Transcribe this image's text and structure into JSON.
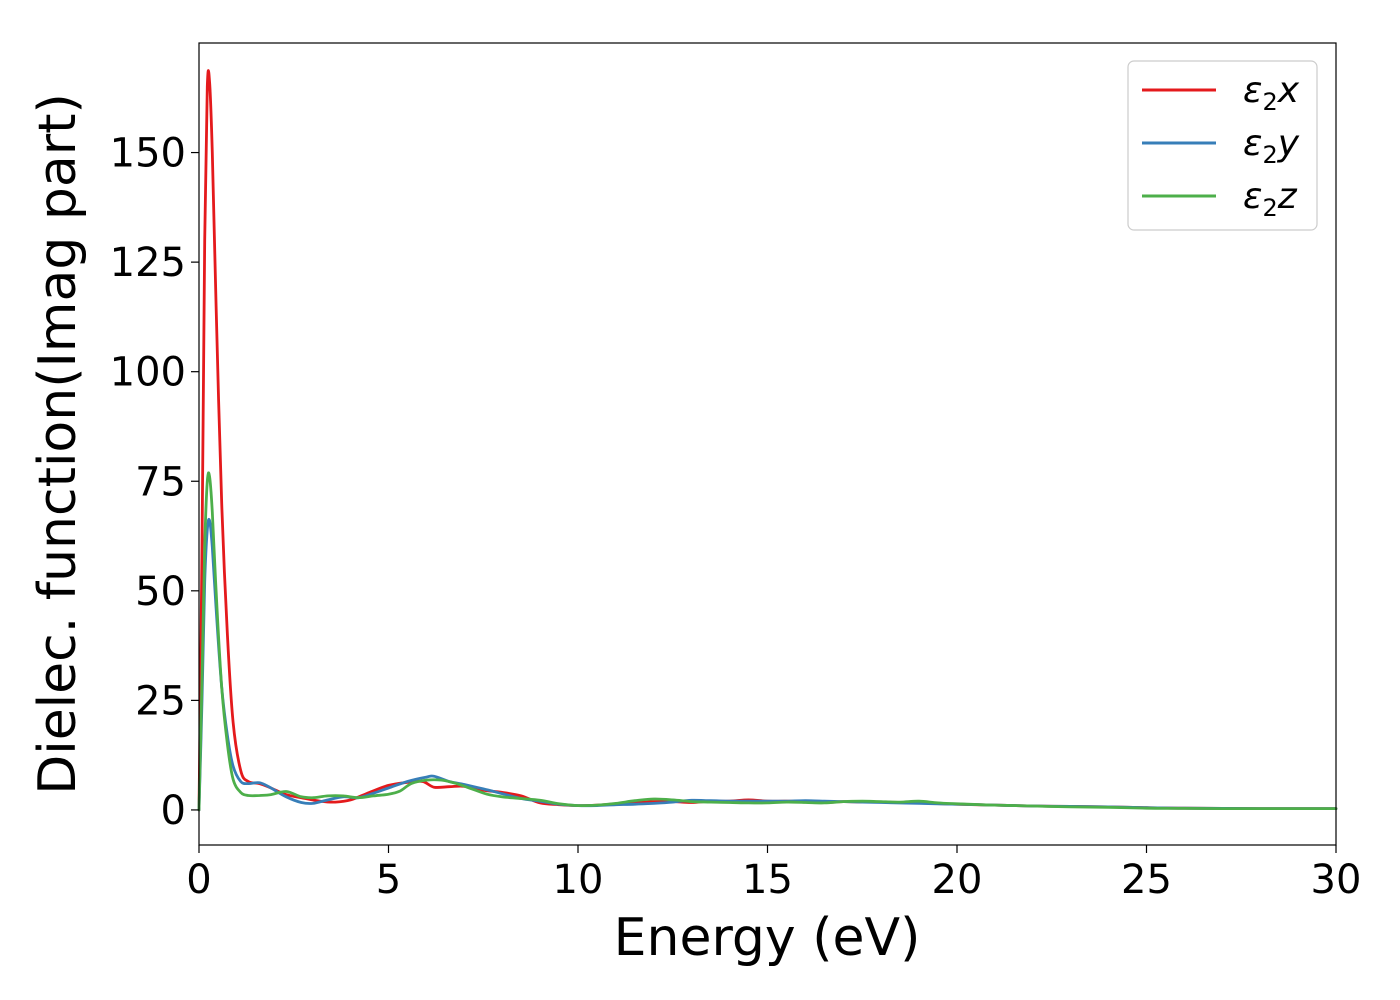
{
  "chart_data": {
    "type": "line",
    "title": "",
    "xlabel": "Energy (eV)",
    "ylabel": "Dielec. function(Imag part)",
    "xlim": [
      0,
      30
    ],
    "ylim": [
      -8,
      175
    ],
    "xticks": [
      "0",
      "5",
      "10",
      "15",
      "20",
      "25",
      "30"
    ],
    "yticks": [
      "0",
      "25",
      "50",
      "75",
      "100",
      "125",
      "150"
    ],
    "xtick_values": [
      0,
      5,
      10,
      15,
      20,
      25,
      30
    ],
    "ytick_values": [
      0,
      25,
      50,
      75,
      100,
      125,
      150
    ],
    "grid": false,
    "legend": {
      "position": "top-right"
    },
    "series": [
      {
        "name_main": "ε",
        "name_sub": "2",
        "name_tail": "x",
        "color": "#e41a1c",
        "points": [
          [
            0,
            0
          ],
          [
            0.08,
            60
          ],
          [
            0.15,
            130
          ],
          [
            0.22,
            165
          ],
          [
            0.28,
            166
          ],
          [
            0.35,
            150
          ],
          [
            0.45,
            115
          ],
          [
            0.6,
            70
          ],
          [
            0.75,
            40
          ],
          [
            0.9,
            20
          ],
          [
            1.1,
            9
          ],
          [
            1.3,
            6.5
          ],
          [
            1.6,
            6
          ],
          [
            1.9,
            5
          ],
          [
            2.3,
            3.5
          ],
          [
            2.7,
            2.8
          ],
          [
            3.2,
            2
          ],
          [
            3.6,
            1.8
          ],
          [
            4.0,
            2.3
          ],
          [
            4.5,
            4
          ],
          [
            5.0,
            5.6
          ],
          [
            5.5,
            6.3
          ],
          [
            5.9,
            6.5
          ],
          [
            6.2,
            5.2
          ],
          [
            6.6,
            5.3
          ],
          [
            7.0,
            5.4
          ],
          [
            7.5,
            4.5
          ],
          [
            8.0,
            4
          ],
          [
            8.5,
            3.2
          ],
          [
            9.0,
            1.6
          ],
          [
            9.5,
            1.2
          ],
          [
            10,
            1
          ],
          [
            10.5,
            1.1
          ],
          [
            11,
            1.4
          ],
          [
            11.5,
            1.6
          ],
          [
            12,
            1.9
          ],
          [
            12.5,
            1.9
          ],
          [
            13,
            1.7
          ],
          [
            13.5,
            2
          ],
          [
            14,
            2
          ],
          [
            14.5,
            2.3
          ],
          [
            15,
            2
          ],
          [
            15.5,
            2
          ],
          [
            16,
            1.9
          ],
          [
            16.5,
            1.7
          ],
          [
            17,
            1.9
          ],
          [
            17.5,
            1.8
          ],
          [
            18,
            1.8
          ],
          [
            19,
            1.6
          ],
          [
            20,
            1.3
          ],
          [
            21,
            1.1
          ],
          [
            22,
            0.9
          ],
          [
            23,
            0.8
          ],
          [
            24,
            0.7
          ],
          [
            25,
            0.5
          ],
          [
            26,
            0.4
          ],
          [
            27,
            0.35
          ],
          [
            28,
            0.3
          ],
          [
            29,
            0.3
          ],
          [
            30,
            0.3
          ]
        ]
      },
      {
        "name_main": "ε",
        "name_sub": "2",
        "name_tail": "y",
        "color": "#377eb8",
        "points": [
          [
            0,
            0
          ],
          [
            0.08,
            25
          ],
          [
            0.15,
            52
          ],
          [
            0.22,
            64
          ],
          [
            0.28,
            66
          ],
          [
            0.35,
            60
          ],
          [
            0.45,
            46
          ],
          [
            0.6,
            28
          ],
          [
            0.75,
            17
          ],
          [
            0.9,
            10
          ],
          [
            1.1,
            6.5
          ],
          [
            1.3,
            6
          ],
          [
            1.6,
            6.2
          ],
          [
            1.9,
            5
          ],
          [
            2.3,
            3
          ],
          [
            2.7,
            1.7
          ],
          [
            3.0,
            1.5
          ],
          [
            3.4,
            2.3
          ],
          [
            3.8,
            3
          ],
          [
            4.2,
            2.8
          ],
          [
            4.6,
            3.8
          ],
          [
            5.0,
            5
          ],
          [
            5.5,
            6.5
          ],
          [
            6.0,
            7.5
          ],
          [
            6.2,
            7.7
          ],
          [
            6.6,
            6.5
          ],
          [
            7.0,
            5.8
          ],
          [
            7.5,
            4.8
          ],
          [
            8.0,
            3.7
          ],
          [
            8.5,
            2.6
          ],
          [
            9.0,
            2
          ],
          [
            9.5,
            1.3
          ],
          [
            10,
            1
          ],
          [
            10.5,
            1
          ],
          [
            11,
            1.2
          ],
          [
            11.5,
            1.3
          ],
          [
            12,
            1.5
          ],
          [
            12.5,
            1.8
          ],
          [
            13,
            2.2
          ],
          [
            13.5,
            2.1
          ],
          [
            14,
            2
          ],
          [
            14.5,
            2
          ],
          [
            15,
            2
          ],
          [
            15.5,
            2
          ],
          [
            16,
            2.1
          ],
          [
            16.5,
            2
          ],
          [
            17,
            1.9
          ],
          [
            17.5,
            1.8
          ],
          [
            18,
            1.7
          ],
          [
            19,
            1.5
          ],
          [
            20,
            1.3
          ],
          [
            21,
            1.1
          ],
          [
            22,
            0.9
          ],
          [
            23,
            0.8
          ],
          [
            24,
            0.7
          ],
          [
            25,
            0.5
          ],
          [
            26,
            0.4
          ],
          [
            27,
            0.35
          ],
          [
            28,
            0.3
          ],
          [
            29,
            0.3
          ],
          [
            30,
            0.3
          ]
        ]
      },
      {
        "name_main": "ε",
        "name_sub": "2",
        "name_tail": "z",
        "color": "#4daf4a",
        "points": [
          [
            0,
            0
          ],
          [
            0.08,
            30
          ],
          [
            0.15,
            60
          ],
          [
            0.22,
            75
          ],
          [
            0.28,
            76
          ],
          [
            0.35,
            68
          ],
          [
            0.45,
            50
          ],
          [
            0.6,
            28
          ],
          [
            0.75,
            15
          ],
          [
            0.9,
            7
          ],
          [
            1.1,
            4
          ],
          [
            1.3,
            3.3
          ],
          [
            1.6,
            3.3
          ],
          [
            1.9,
            3.5
          ],
          [
            2.3,
            4.2
          ],
          [
            2.7,
            3
          ],
          [
            3.0,
            2.8
          ],
          [
            3.4,
            3.2
          ],
          [
            3.8,
            3.2
          ],
          [
            4.2,
            2.8
          ],
          [
            4.6,
            3.2
          ],
          [
            5.0,
            3.6
          ],
          [
            5.3,
            4.3
          ],
          [
            5.6,
            6
          ],
          [
            6.0,
            6.8
          ],
          [
            6.4,
            6.8
          ],
          [
            6.8,
            6
          ],
          [
            7.2,
            4.8
          ],
          [
            7.6,
            3.6
          ],
          [
            8.0,
            3
          ],
          [
            8.5,
            2.6
          ],
          [
            9.0,
            2.2
          ],
          [
            9.5,
            1.4
          ],
          [
            10,
            1
          ],
          [
            10.5,
            1.1
          ],
          [
            11,
            1.5
          ],
          [
            11.5,
            2.1
          ],
          [
            12,
            2.5
          ],
          [
            12.5,
            2.3
          ],
          [
            13,
            1.9
          ],
          [
            13.5,
            1.8
          ],
          [
            14,
            1.7
          ],
          [
            14.5,
            1.6
          ],
          [
            15,
            1.6
          ],
          [
            15.5,
            1.8
          ],
          [
            16,
            1.7
          ],
          [
            16.5,
            1.6
          ],
          [
            17,
            1.9
          ],
          [
            17.5,
            2
          ],
          [
            18,
            1.9
          ],
          [
            18.5,
            1.8
          ],
          [
            19,
            2
          ],
          [
            19.5,
            1.6
          ],
          [
            20,
            1.4
          ],
          [
            21,
            1.1
          ],
          [
            22,
            0.9
          ],
          [
            23,
            0.7
          ],
          [
            24,
            0.6
          ],
          [
            25,
            0.4
          ],
          [
            26,
            0.35
          ],
          [
            27,
            0.3
          ],
          [
            28,
            0.3
          ],
          [
            29,
            0.3
          ],
          [
            30,
            0.3
          ]
        ]
      }
    ]
  }
}
